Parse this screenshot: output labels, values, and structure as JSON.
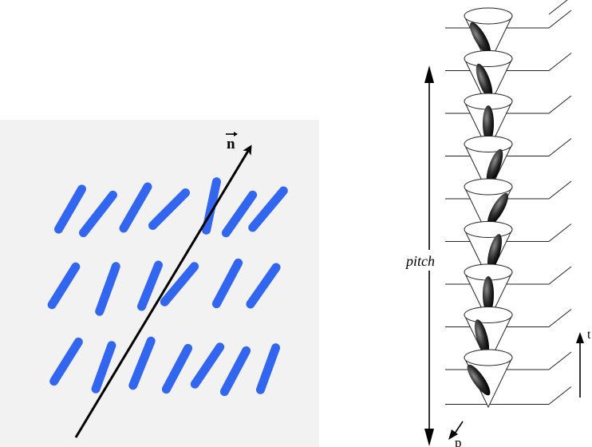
{
  "left_panel": {
    "director_label": "n",
    "molecule_color": "#3366ee",
    "background_color": "#f2f2f2",
    "arrow_color": "#000000"
  },
  "right_panel": {
    "pitch_label": "pitch",
    "p_label": "p",
    "t_label": "t",
    "layer_count": 9,
    "molecule_color": "#2a2a2a"
  }
}
